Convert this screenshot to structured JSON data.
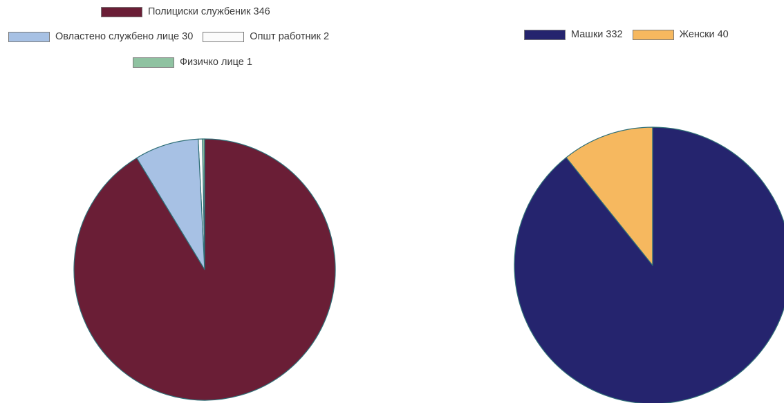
{
  "chart_data": [
    {
      "type": "pie",
      "categories": [
        "Полициски службеник",
        "Овластено службено лице",
        "Општ работник",
        "Физичко лице"
      ],
      "values": [
        346,
        30,
        2,
        1
      ],
      "colors": [
        "#6a1e36",
        "#a7c1e4",
        "#fbfbfb",
        "#8fc2a1"
      ],
      "legend": {
        "position": "top",
        "rows": [
          [
            {
              "label": "Полициски службеник 346",
              "index": 0
            }
          ],
          [
            {
              "label": "Овластено службено лице 30",
              "index": 1
            },
            {
              "label": "Општ работник 2",
              "index": 2
            }
          ],
          [
            {
              "label": "Физичко лице 1",
              "index": 3
            }
          ]
        ]
      }
    },
    {
      "type": "pie",
      "categories": [
        "Машки",
        "Женски"
      ],
      "values": [
        332,
        40
      ],
      "colors": [
        "#25246e",
        "#f6b85f"
      ],
      "legend": {
        "position": "top",
        "rows": [
          [
            {
              "label": "Машки 332",
              "index": 0
            },
            {
              "label": "Женски 40",
              "index": 1
            }
          ]
        ]
      }
    }
  ]
}
